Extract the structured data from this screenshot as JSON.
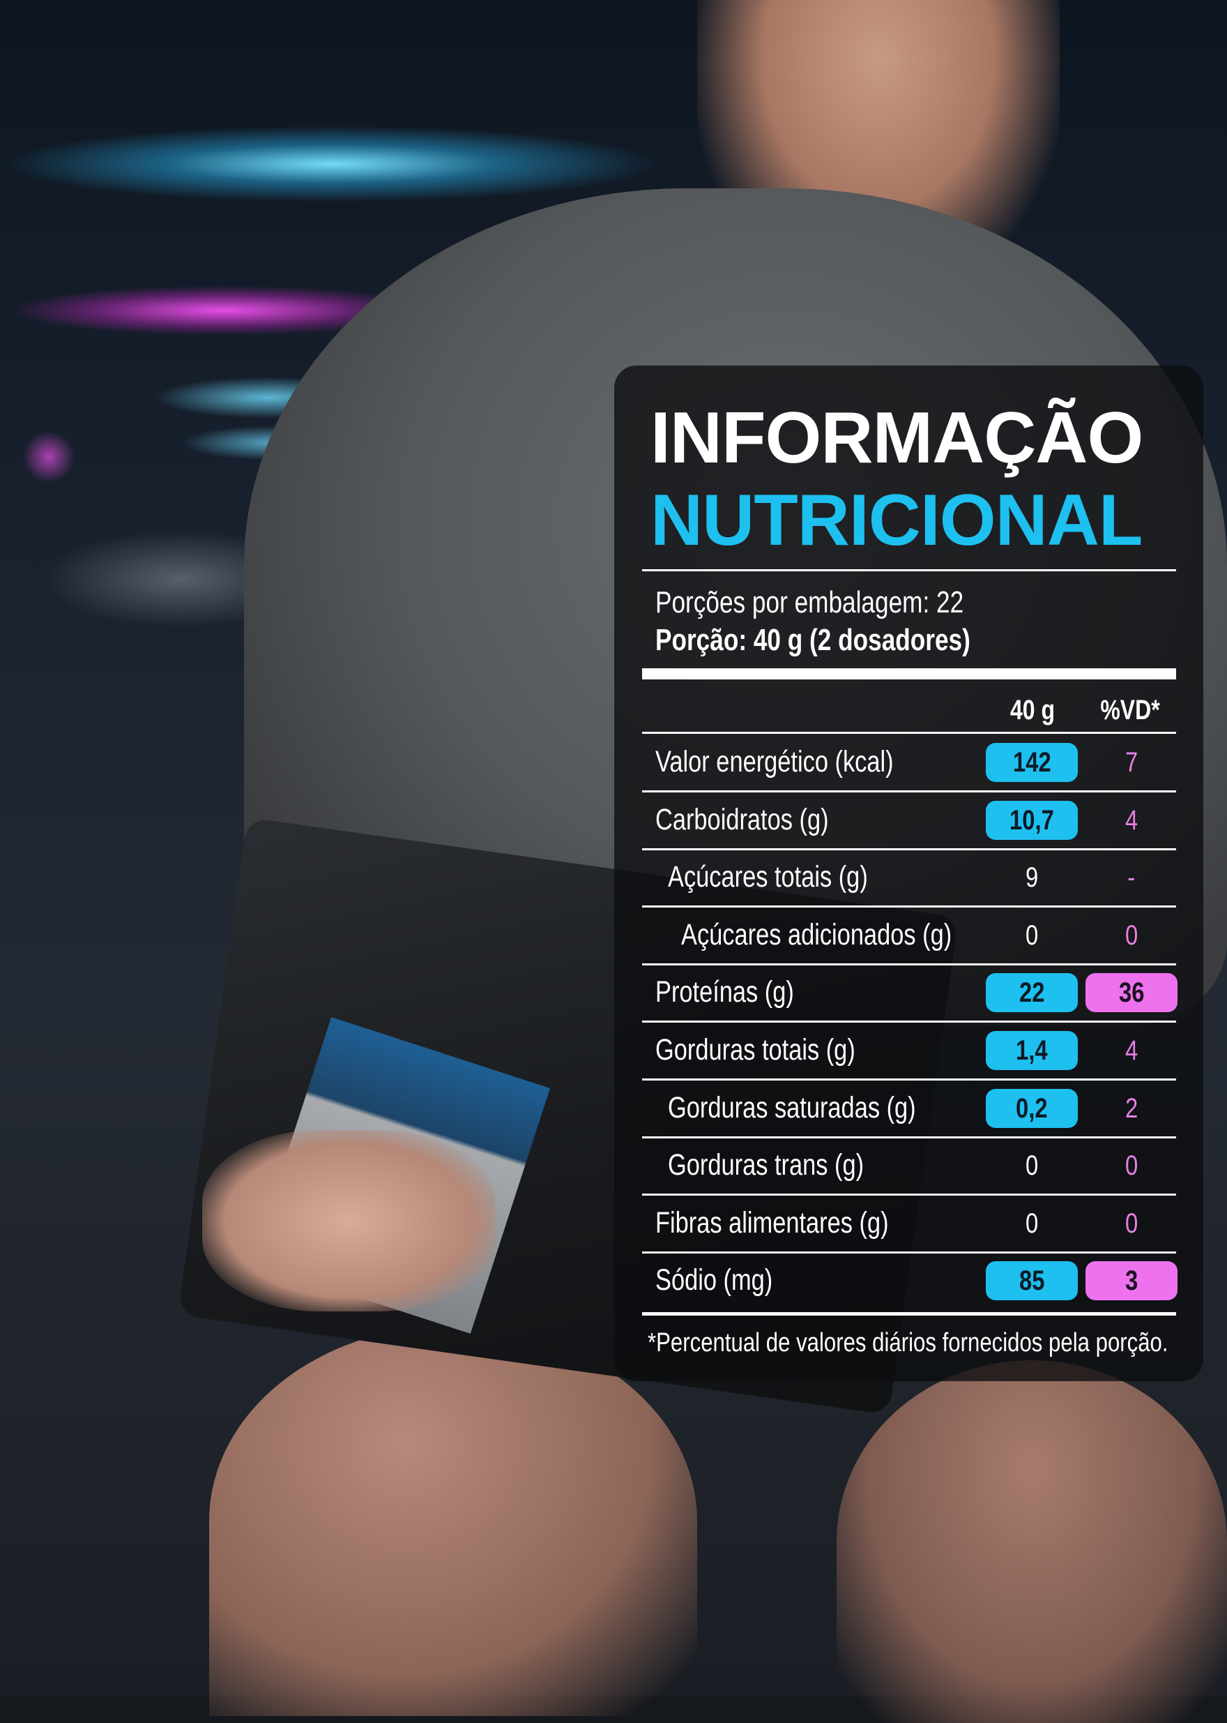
{
  "colors": {
    "accent_cyan": "#1ec0f0",
    "accent_pink": "#ee72ee",
    "panel": "#0c0d10"
  },
  "panel": {
    "title_line1": "INFORMAÇÃO",
    "title_line2": "NUTRICIONAL",
    "servings_per_package": "Porções por embalagem: 22",
    "serving_size": "Porção: 40 g (2 dosadores)",
    "col_amount": "40 g",
    "col_dv": "%VD*",
    "rows": [
      {
        "label": "Valor energético (kcal)",
        "value": "142",
        "dv": "7",
        "indent": 0,
        "value_highlight": true,
        "dv_highlight": false
      },
      {
        "label": "Carboidratos (g)",
        "value": "10,7",
        "dv": "4",
        "indent": 0,
        "value_highlight": true,
        "dv_highlight": false
      },
      {
        "label": "Açúcares totais (g)",
        "value": "9",
        "dv": "-",
        "indent": 1,
        "value_highlight": false,
        "dv_highlight": false
      },
      {
        "label": "Açúcares adicionados (g)",
        "value": "0",
        "dv": "0",
        "indent": 2,
        "value_highlight": false,
        "dv_highlight": false
      },
      {
        "label": "Proteínas (g)",
        "value": "22",
        "dv": "36",
        "indent": 0,
        "value_highlight": true,
        "dv_highlight": true
      },
      {
        "label": "Gorduras totais (g)",
        "value": "1,4",
        "dv": "4",
        "indent": 0,
        "value_highlight": true,
        "dv_highlight": false
      },
      {
        "label": "Gorduras saturadas (g)",
        "value": "0,2",
        "dv": "2",
        "indent": 1,
        "value_highlight": true,
        "dv_highlight": false
      },
      {
        "label": "Gorduras trans (g)",
        "value": "0",
        "dv": "0",
        "indent": 1,
        "value_highlight": false,
        "dv_highlight": false
      },
      {
        "label": "Fibras alimentares (g)",
        "value": "0",
        "dv": "0",
        "indent": 0,
        "value_highlight": false,
        "dv_highlight": false
      },
      {
        "label": "Sódio (mg)",
        "value": "85",
        "dv": "3",
        "indent": 0,
        "value_highlight": true,
        "dv_highlight": true
      }
    ],
    "footnote": "*Percentual de valores diários fornecidos pela porção."
  }
}
